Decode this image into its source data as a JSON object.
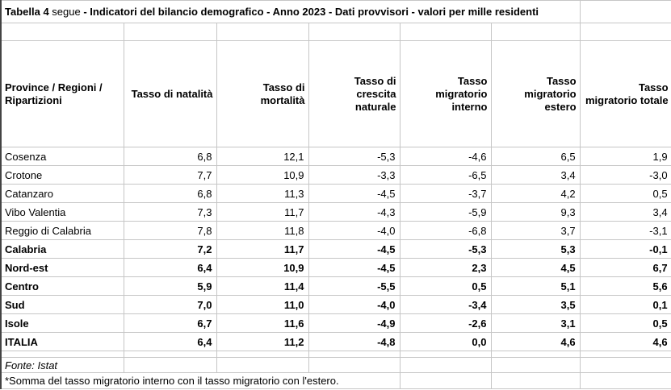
{
  "title": {
    "table_label": "Tabella 4",
    "segue": " segue",
    "description": " - Indicatori del bilancio demografico - Anno 2023 - Dati provvisori - valori per mille residenti"
  },
  "columns": [
    [
      "Province / Regioni /",
      "Ripartizioni"
    ],
    [
      "Tasso di natalità"
    ],
    [
      "Tasso di",
      "mortalità"
    ],
    [
      "Tasso di",
      "crescita",
      "naturale"
    ],
    [
      "Tasso",
      "migratorio",
      "interno"
    ],
    [
      "Tasso",
      "migratorio",
      "estero"
    ],
    [
      "Tasso",
      "migratorio totale"
    ]
  ],
  "rows": [
    {
      "label": "Cosenza",
      "bold": false,
      "values": [
        "6,8",
        "12,1",
        "-5,3",
        "-4,6",
        "6,5",
        "1,9"
      ]
    },
    {
      "label": "Crotone",
      "bold": false,
      "values": [
        "7,7",
        "10,9",
        "-3,3",
        "-6,5",
        "3,4",
        "-3,0"
      ]
    },
    {
      "label": "Catanzaro",
      "bold": false,
      "values": [
        "6,8",
        "11,3",
        "-4,5",
        "-3,7",
        "4,2",
        "0,5"
      ]
    },
    {
      "label": "Vibo Valentia",
      "bold": false,
      "values": [
        "7,3",
        "11,7",
        "-4,3",
        "-5,9",
        "9,3",
        "3,4"
      ]
    },
    {
      "label": "Reggio di Calabria",
      "bold": false,
      "values": [
        "7,8",
        "11,8",
        "-4,0",
        "-6,8",
        "3,7",
        "-3,1"
      ]
    },
    {
      "label": "Calabria",
      "bold": true,
      "values": [
        "7,2",
        "11,7",
        "-4,5",
        "-5,3",
        "5,3",
        "-0,1"
      ]
    },
    {
      "label": "Nord-est",
      "bold": true,
      "values": [
        "6,4",
        "10,9",
        "-4,5",
        "2,3",
        "4,5",
        "6,7"
      ]
    },
    {
      "label": "Centro",
      "bold": true,
      "values": [
        "5,9",
        "11,4",
        "-5,5",
        "0,5",
        "5,1",
        "5,6"
      ]
    },
    {
      "label": "Sud",
      "bold": true,
      "values": [
        "7,0",
        "11,0",
        "-4,0",
        "-3,4",
        "3,5",
        "0,1"
      ]
    },
    {
      "label": "Isole",
      "bold": true,
      "values": [
        "6,7",
        "11,6",
        "-4,9",
        "-2,6",
        "3,1",
        "0,5"
      ]
    },
    {
      "label": "ITALIA",
      "bold": true,
      "values": [
        "6,4",
        "11,2",
        "-4,8",
        "0,0",
        "4,6",
        "4,6"
      ]
    }
  ],
  "footer": {
    "source": "Fonte: Istat",
    "note": "*Somma del tasso migratorio interno con il tasso migratorio con l'estero."
  },
  "colors": {
    "gridline": "#c6c6c6",
    "dark_rule": "#555555",
    "top_border": "#000000",
    "text": "#000000",
    "background": "#ffffff"
  }
}
